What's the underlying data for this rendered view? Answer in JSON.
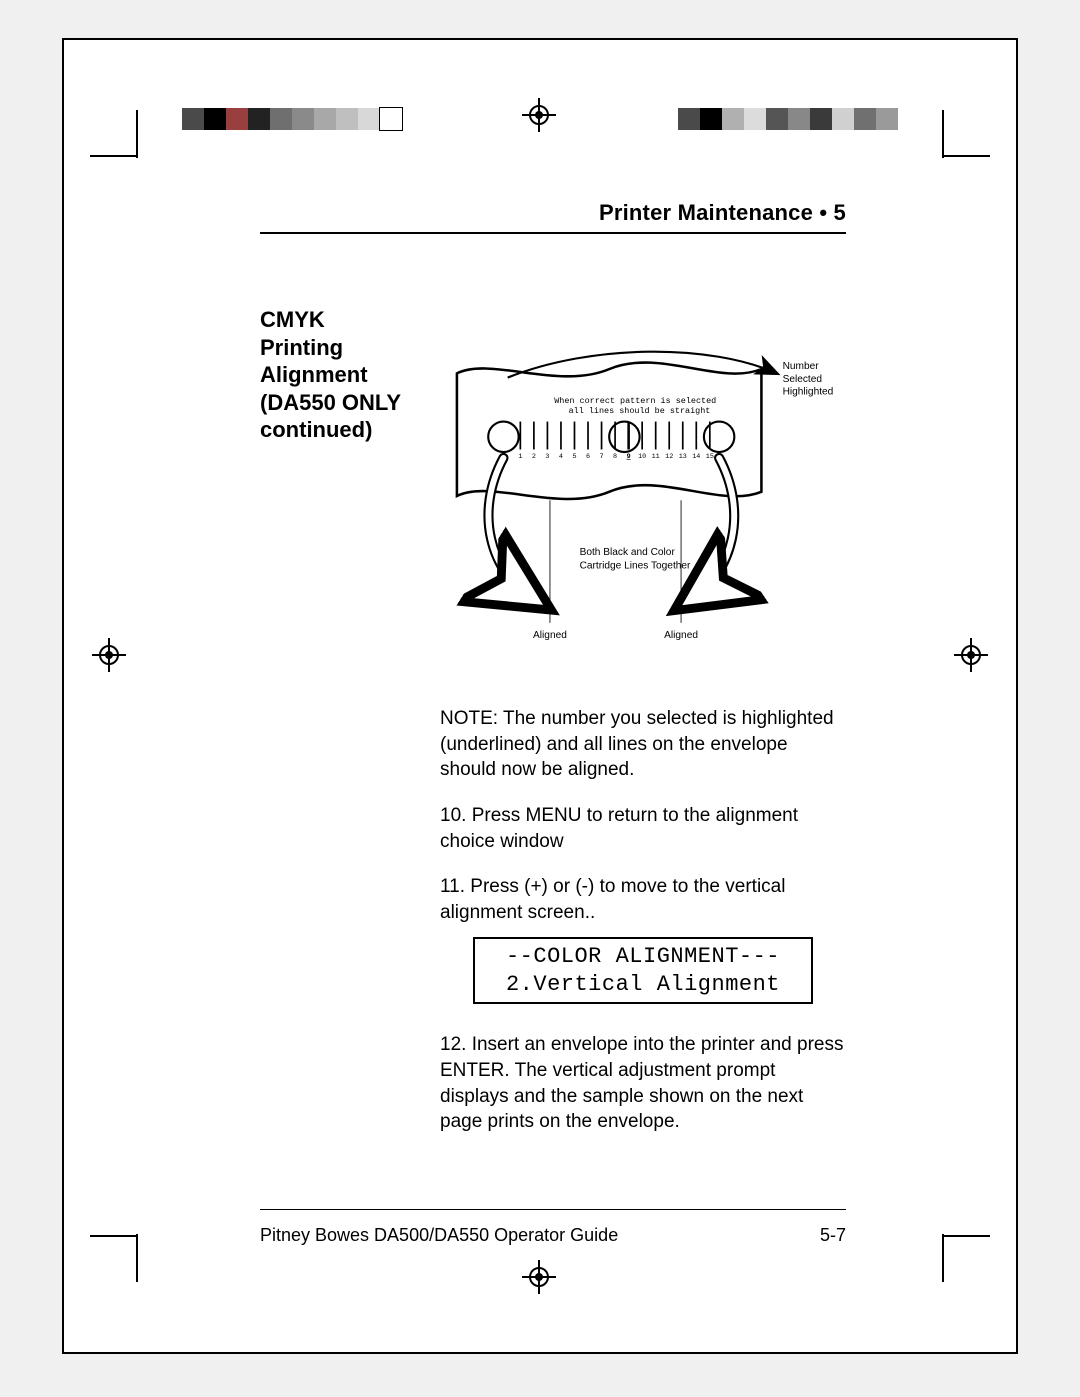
{
  "header": {
    "title": "Printer Maintenance  •  5"
  },
  "side_heading": {
    "l1": "CMYK",
    "l2": "Printing",
    "l3": "Alignment",
    "l4": "(DA550 ONLY",
    "l5": "continued)"
  },
  "diagram": {
    "instruction_l1": "When correct pattern is selected",
    "instruction_l2": "all lines should be straight",
    "callout_right_l1": "Number",
    "callout_right_l2": "Selected",
    "callout_right_l3": "Highlighted",
    "callout_mid_l1": "Both Black and Color",
    "callout_mid_l2": "Cartridge Lines Together",
    "aligned_left": "Aligned",
    "aligned_right": "Aligned",
    "ticks": [
      "1",
      "2",
      "3",
      "4",
      "5",
      "6",
      "7",
      "8",
      "9",
      "10",
      "11",
      "12",
      "13",
      "14",
      "15"
    ],
    "colors": {
      "stroke": "#000000",
      "fill_box": "#ffffff"
    },
    "tick_fontsize": 8,
    "label_fontsize": 12
  },
  "body": {
    "note": "NOTE: The number you selected is highlighted (underlined) and all lines on the envelope should now be aligned.",
    "s10": "10. Press MENU to return to the alignment choice window",
    "s11": "11. Press (+) or (-) to move to the vertical alignment screen..",
    "s12": "12. Insert an envelope into the printer and press ENTER. The vertical adjustment prompt displays and the sample shown on the next page prints on the envelope."
  },
  "lcd": {
    "l1": "--COLOR ALIGNMENT---",
    "l2": "2.Vertical Alignment"
  },
  "footer": {
    "left": "Pitney Bowes DA500/DA550 Operator Guide",
    "right": "5-7"
  },
  "registration_colors": {
    "left_strip": [
      "#4a4a4a",
      "#000000",
      "#9a3f3f",
      "#222222",
      "#6f6f6f",
      "#8a8a8a",
      "#a8a8a8",
      "#bfbfbf",
      "#d8d8d8",
      "#ffffff"
    ],
    "right_strip": [
      "#4a4a4a",
      "#000000",
      "#b0b0b0",
      "#dcdcdc",
      "#555555",
      "#888888",
      "#3a3a3a",
      "#d0d0d0",
      "#707070",
      "#9a9a9a"
    ]
  }
}
